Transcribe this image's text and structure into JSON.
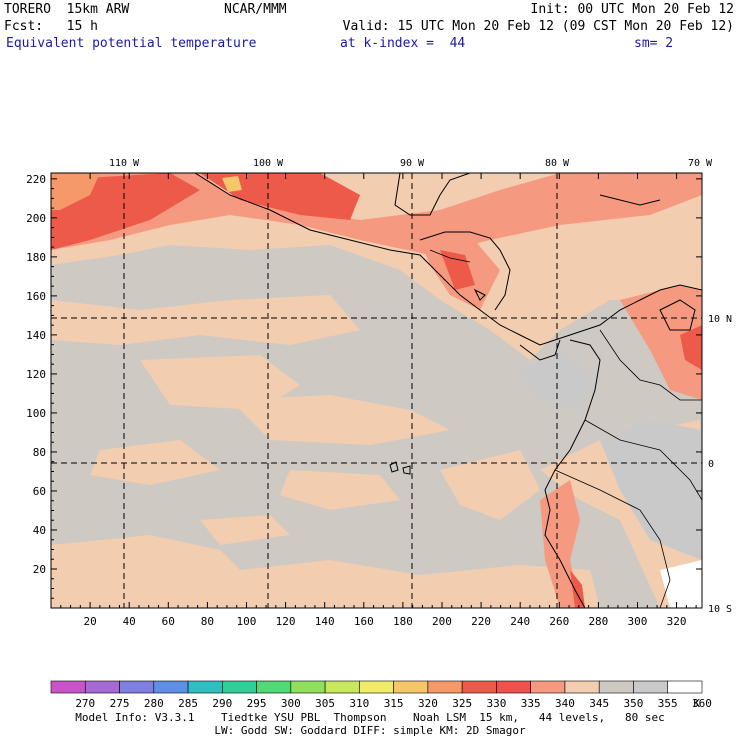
{
  "header": {
    "model": "TORERO  15km ARW",
    "center": "NCAR/MMM",
    "init": "Init: 00 UTC Mon 20 Feb 12",
    "fcst": "Fcst:   15 h",
    "valid": "Valid: 15 UTC Mon 20 Feb 12 (09 CST Mon 20 Feb 12)",
    "field": "Equivalent potential temperature",
    "level": "at k-index =  44",
    "smooth": "sm= 2"
  },
  "map": {
    "lon_labels": [
      "110 W",
      "100 W",
      "90 W",
      "80 W",
      "70 W"
    ],
    "lat_labels": [
      "10 N",
      "0",
      "10 S"
    ],
    "x_ticks": [
      "20",
      "40",
      "60",
      "80",
      "100",
      "120",
      "140",
      "160",
      "180",
      "200",
      "220",
      "240",
      "260",
      "280",
      "300",
      "320"
    ],
    "y_ticks": [
      "20",
      "40",
      "60",
      "80",
      "100",
      "120",
      "140",
      "160",
      "180",
      "200",
      "220"
    ]
  },
  "colorbar": {
    "labels": [
      "270",
      "275",
      "280",
      "285",
      "290",
      "295",
      "300",
      "305",
      "310",
      "315",
      "320",
      "325",
      "330",
      "335",
      "340",
      "345",
      "350",
      "355",
      "360"
    ],
    "unit": "K",
    "colors": [
      "#c855c8",
      "#a66ad2",
      "#7f7fe0",
      "#5f8fe4",
      "#2ec0c0",
      "#2fcf9a",
      "#52d875",
      "#8fe05e",
      "#c7e85c",
      "#f0ec6a",
      "#f5c66a",
      "#f5996a",
      "#ee5a4a",
      "#f2504a",
      "#f59a80",
      "#f2cdb0",
      "#cfc9c4",
      "#c9c9c9",
      "#ffffff"
    ]
  },
  "footer": {
    "line1": "Model Info: V3.3.1    Tiedtke YSU PBL  Thompson    Noah LSM  15 km,   44 levels,   80 sec",
    "line2": "LW: Godd SW: Goddard DIFF: simple KM: 2D Smagor"
  }
}
